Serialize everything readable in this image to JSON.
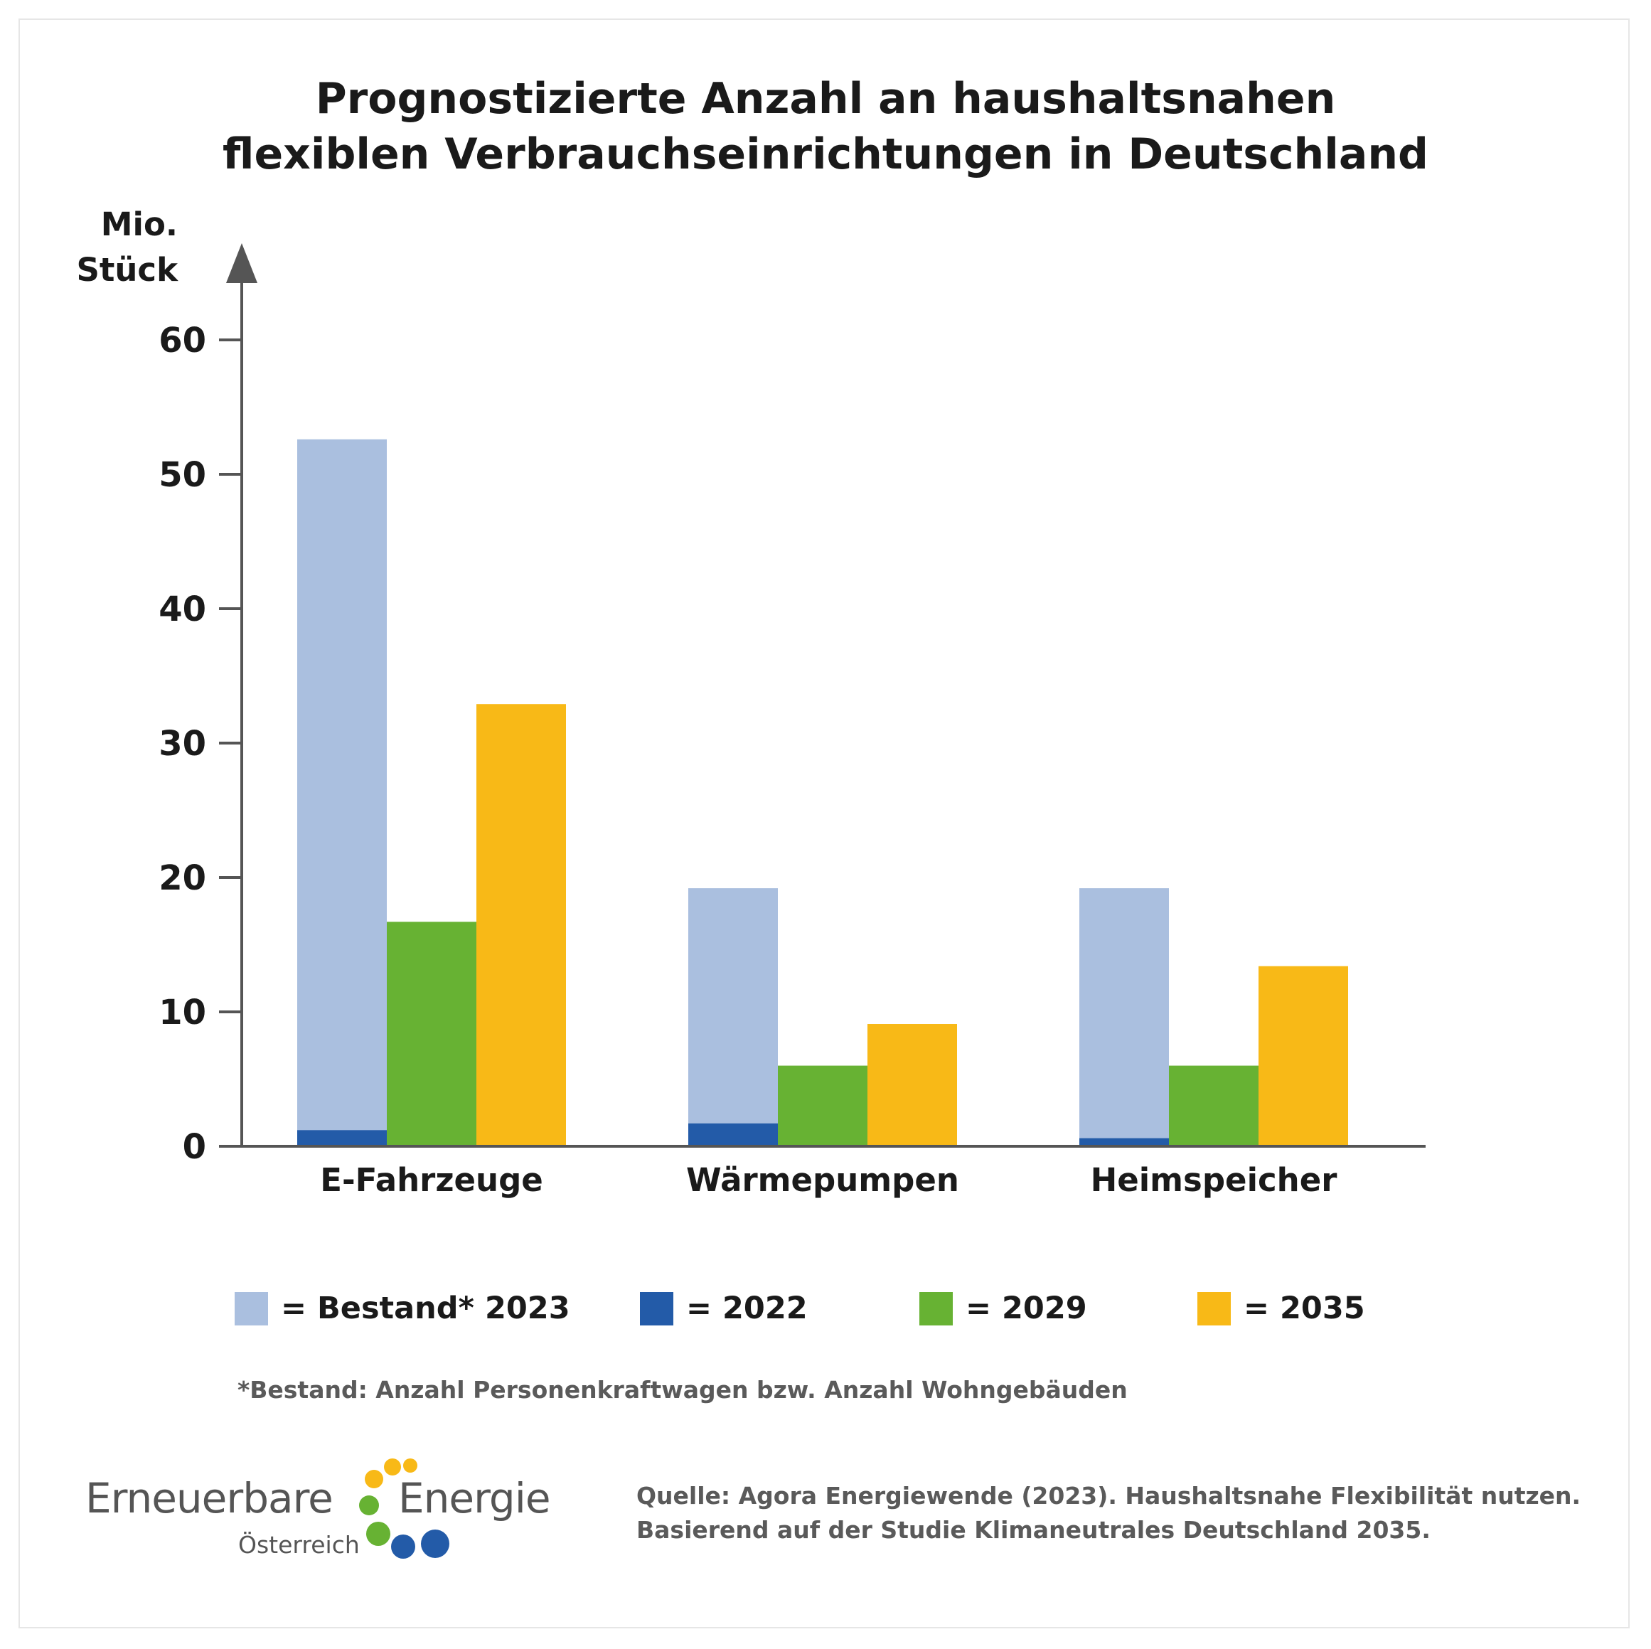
{
  "title_line1": "Prognostizierte Anzahl an haushaltsnahen",
  "title_line2": "flexiblen Verbrauchseinrichtungen in Deutschland",
  "y_unit_line1": "Mio.",
  "y_unit_line2": "Stück",
  "chart_data": {
    "type": "bar",
    "categories": [
      "E-Fahrzeuge",
      "Wärmepumpen",
      "Heimspeicher"
    ],
    "series": [
      {
        "name": "Bestand* 2023",
        "values": [
          52.6,
          19.2,
          19.2
        ],
        "color": "#aabfdf"
      },
      {
        "name": "2022",
        "values": [
          1.2,
          1.7,
          0.6
        ],
        "color": "#235ba8"
      },
      {
        "name": "2029",
        "values": [
          16.7,
          6.0,
          6.0
        ],
        "color": "#67b233"
      },
      {
        "name": "2035",
        "values": [
          32.9,
          9.1,
          13.4
        ],
        "color": "#f8b917"
      }
    ],
    "note": "2022 values are drawn overlaid at the base of the Bestand* 2023 bar",
    "yticks": [
      0,
      10,
      20,
      30,
      40,
      50,
      60
    ],
    "ylim": [
      0,
      65
    ],
    "grid": false,
    "legend_position": "bottom"
  },
  "legend": [
    {
      "label": "= Bestand* 2023",
      "color": "#aabfdf"
    },
    {
      "label": "= 2022",
      "color": "#235ba8"
    },
    {
      "label": "= 2029",
      "color": "#67b233"
    },
    {
      "label": "= 2035",
      "color": "#f8b917"
    }
  ],
  "footnote": "*Bestand: Anzahl Personenkraftwagen bzw. Anzahl Wohngebäuden",
  "source_line1": "Quelle: Agora Energiewende (2023). Haushaltsnahe Flexibilität nutzen.",
  "source_line2": "Basierend auf der Studie Klimaneutrales Deutschland 2035.",
  "logo": {
    "word1": "Erneuerbare",
    "word2": "Energie",
    "sub": "Österreich",
    "colors": {
      "yellow": "#f8b917",
      "green": "#67b233",
      "blue": "#235ba8"
    }
  },
  "colors": {
    "axis": "#555555",
    "text": "#1a1a1a"
  }
}
